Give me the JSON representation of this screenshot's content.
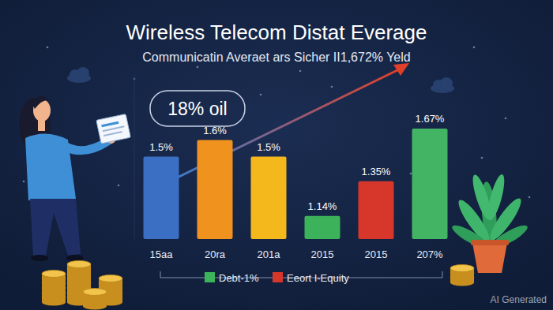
{
  "chart_data": {
    "type": "bar",
    "title": "Wireless Telecom Distat Everage",
    "subtitle": "Communicatin Averaet ars Sicher II1,672% Yeld",
    "annotations": [
      "18% oil"
    ],
    "categories": [
      "15aa",
      "20ra",
      "201a",
      "2015",
      "2015",
      "207%"
    ],
    "values": [
      1.5,
      1.6,
      1.5,
      1.14,
      1.35,
      1.67
    ],
    "value_labels": [
      "1.5%",
      "1.6%",
      "1.5%",
      "1.14%",
      "1.35%",
      "1.67%"
    ],
    "colors": [
      "#3a6fc4",
      "#f0921e",
      "#f4b81c",
      "#3cb35a",
      "#d6372a",
      "#43b463"
    ],
    "ylim": [
      1.0,
      2.0
    ],
    "tick_labels": "x",
    "data_labels": true,
    "legend_entries": [
      {
        "label": "Debt-1%",
        "color": "#3cb35a"
      },
      {
        "label": "Eeort I-Equity",
        "color": "#d6372a"
      }
    ],
    "watermark": "AI Generated"
  }
}
